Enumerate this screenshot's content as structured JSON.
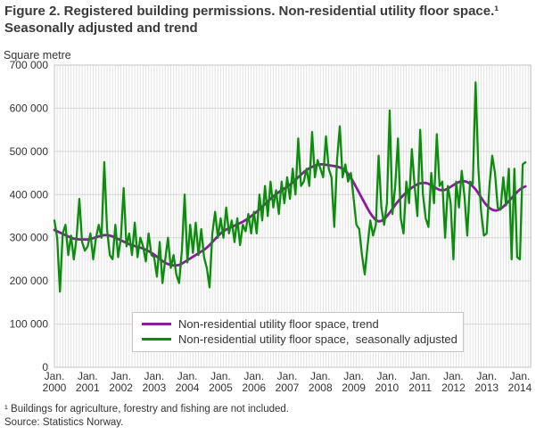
{
  "title": "Figure 2. Registered building permissions. Non-residential utility floor space.¹ Seasonally adjusted and trend",
  "unit_label": "Square metre",
  "footnote": "¹ Buildings for agriculture, forestry and fishing are not included.",
  "source": "Source: Statistics Norway.",
  "chart_data": {
    "type": "line",
    "title": "Figure 2. Registered building permissions. Non-residential utility floor space.¹ Seasonally adjusted and trend",
    "ylabel": "Square metre",
    "x_start": "Jan. 2000",
    "x_frequency": "monthly",
    "x_tick_month_label": "Jan.",
    "x_tick_years": [
      "2000",
      "2001",
      "2002",
      "2003",
      "2004",
      "2005",
      "2006",
      "2007",
      "2008",
      "2009",
      "2010",
      "2011",
      "2012",
      "2013",
      "2014"
    ],
    "ylim": [
      0,
      700000
    ],
    "y_tick_interval": 100000,
    "y_tick_labels": [
      "0",
      "100 000",
      "200 000",
      "300 000",
      "400 000",
      "500 000",
      "600 000",
      "700 000"
    ],
    "grid": "monthly vertical lines and horizontal lines each 100 000",
    "legend_position": "inside bottom-center",
    "colors": {
      "grid_vertical": "#e2e2e2",
      "grid_horizontal": "#d5d5d5",
      "plot_border": "#c6c6c6",
      "text": "#333333"
    },
    "series": [
      {
        "name": "Non-residential utility floor space, trend",
        "color": "#8a1a9e",
        "width": 2.8,
        "values": [
          318000,
          315000,
          312000,
          309000,
          306000,
          303000,
          300000,
          298000,
          297000,
          296000,
          296000,
          296000,
          296000,
          297000,
          299000,
          301000,
          303000,
          305000,
          306000,
          306000,
          305000,
          303000,
          300000,
          297000,
          294000,
          291000,
          288000,
          285000,
          283000,
          281000,
          279000,
          277000,
          275000,
          272000,
          269000,
          265000,
          261000,
          256000,
          251000,
          246000,
          242000,
          239000,
          237000,
          236000,
          236000,
          237000,
          240000,
          244000,
          248000,
          252000,
          256000,
          260000,
          264000,
          268000,
          272000,
          277000,
          283000,
          290000,
          297000,
          304000,
          310000,
          315000,
          319000,
          322000,
          325000,
          328000,
          331000,
          334000,
          337000,
          341000,
          345000,
          350000,
          355000,
          360000,
          366000,
          372000,
          378000,
          384000,
          390000,
          396000,
          401000,
          406000,
          410000,
          414000,
          418000,
          423000,
          428000,
          434000,
          440000,
          446000,
          452000,
          457000,
          461000,
          464000,
          467000,
          469000,
          470000,
          470000,
          469000,
          468000,
          467000,
          466000,
          465000,
          463000,
          460000,
          455000,
          448000,
          439000,
          428000,
          416000,
          404000,
          392000,
          380000,
          368000,
          357000,
          348000,
          341000,
          338000,
          339000,
          343000,
          350000,
          358000,
          367000,
          376000,
          384000,
          392000,
          399000,
          405000,
          411000,
          416000,
          420000,
          424000,
          426000,
          427000,
          427000,
          425000,
          422000,
          418000,
          414000,
          411000,
          410000,
          411000,
          414000,
          418000,
          422000,
          426000,
          429000,
          431000,
          431000,
          429000,
          425000,
          419000,
          412000,
          403000,
          393000,
          383000,
          375000,
          369000,
          365000,
          363000,
          364000,
          367000,
          372000,
          378000,
          385000,
          392000,
          399000,
          406000,
          412000,
          416000,
          419000
        ]
      },
      {
        "name": "Non-residential utility floor space,  seasonally adjusted",
        "color": "#0c8c0c",
        "width": 2.3,
        "values": [
          340000,
          300000,
          175000,
          310000,
          330000,
          260000,
          305000,
          250000,
          300000,
          390000,
          290000,
          270000,
          280000,
          310000,
          250000,
          300000,
          330000,
          300000,
          475000,
          320000,
          260000,
          250000,
          330000,
          255000,
          300000,
          415000,
          280000,
          310000,
          260000,
          335000,
          255000,
          300000,
          280000,
          245000,
          310000,
          260000,
          255000,
          210000,
          290000,
          195000,
          250000,
          300000,
          230000,
          260000,
          215000,
          195000,
          270000,
          400000,
          243000,
          330000,
          265000,
          335000,
          260000,
          320000,
          255000,
          230000,
          185000,
          310000,
          360000,
          300000,
          345000,
          300000,
          370000,
          310000,
          340000,
          290000,
          345000,
          283000,
          330000,
          315000,
          355000,
          310000,
          360000,
          310000,
          400000,
          340000,
          420000,
          350000,
          430000,
          370000,
          410000,
          355000,
          430000,
          380000,
          440000,
          390000,
          460000,
          400000,
          530000,
          420000,
          430000,
          460000,
          420000,
          545000,
          440000,
          480000,
          460000,
          440000,
          535000,
          460000,
          440000,
          325000,
          480000,
          558000,
          440000,
          470000,
          430000,
          450000,
          390000,
          330000,
          320000,
          260000,
          215000,
          280000,
          340000,
          305000,
          330000,
          490000,
          370000,
          330000,
          380000,
          595000,
          355000,
          420000,
          530000,
          345000,
          310000,
          430000,
          380000,
          505000,
          420000,
          350000,
          550000,
          400000,
          345000,
          325000,
          450000,
          380000,
          540000,
          420000,
          430000,
          300000,
          420000,
          380000,
          250000,
          430000,
          370000,
          455000,
          395000,
          305000,
          430000,
          425000,
          660000,
          460000,
          360000,
          305000,
          310000,
          420000,
          490000,
          450000,
          370000,
          365000,
          440000,
          375000,
          460000,
          250000,
          460000,
          255000,
          250000,
          470000,
          475000
        ]
      }
    ]
  }
}
